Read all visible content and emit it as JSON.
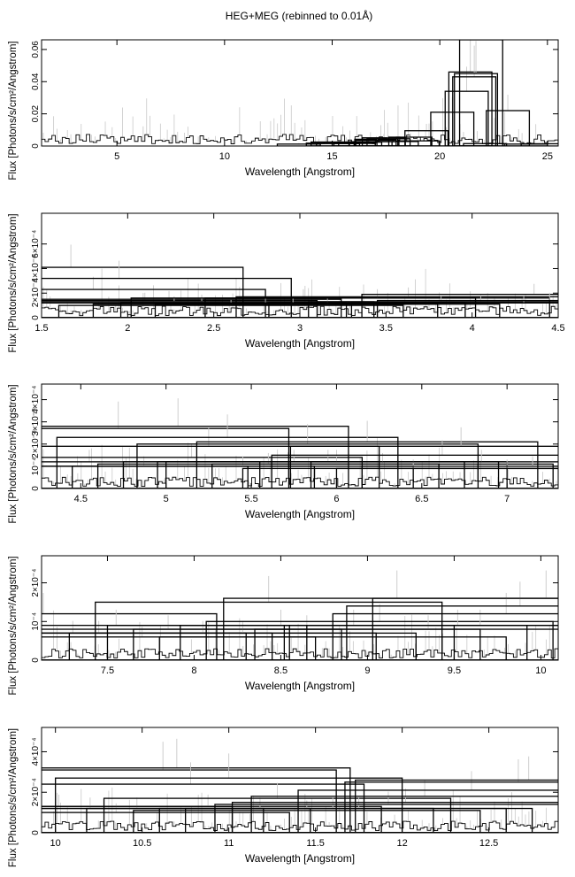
{
  "title": "HEG+MEG (rebinned to 0.01Å)",
  "colors": {
    "data": "#000000",
    "error": "#c8c8c8",
    "axis": "#000000"
  },
  "chart_data": [
    {
      "type": "histogram",
      "xlabel": "Wavelength [Angstrom]",
      "ylabel": "Flux [Photons/s/cm²/Angstrom]",
      "xlim": [
        1.5,
        25.5
      ],
      "ylim": [
        0,
        0.066
      ],
      "xticks": [
        5,
        10,
        15,
        20,
        25
      ],
      "yticks": [
        0,
        0.02,
        0.04,
        0.06
      ],
      "ytick_labels": [
        "0",
        "0.02",
        "0.04",
        "0.06"
      ],
      "bins": [
        [
          13.45,
          0.0012
        ],
        [
          14.8,
          0.0018
        ],
        [
          15.02,
          0.0025
        ],
        [
          15.27,
          0.0015
        ],
        [
          16.0,
          0.0016
        ],
        [
          16.08,
          0.0022
        ],
        [
          16.3,
          0.0024
        ],
        [
          16.78,
          0.0027
        ],
        [
          17.05,
          0.0042
        ],
        [
          17.1,
          0.0036
        ],
        [
          17.4,
          0.0051
        ],
        [
          17.62,
          0.0045
        ],
        [
          18.0,
          0.0028
        ],
        [
          18.63,
          0.0055
        ],
        [
          18.97,
          0.0032
        ],
        [
          19.38,
          0.0095
        ],
        [
          20.58,
          0.021
        ],
        [
          21.25,
          0.034
        ],
        [
          21.42,
          0.046
        ],
        [
          21.6,
          0.043
        ],
        [
          21.68,
          0.045
        ],
        [
          21.92,
          0.066
        ],
        [
          22.1,
          0.0015
        ],
        [
          23.16,
          0.022
        ],
        [
          24.0,
          0.0012
        ],
        [
          24.78,
          0.0014
        ]
      ]
    },
    {
      "type": "histogram",
      "xlabel": "Wavelength [Angstrom]",
      "ylabel": "Flux [Photons/s/cm²/Angstrom]",
      "xlim": [
        1.5,
        4.5
      ],
      "ylim": [
        0,
        0.00085
      ],
      "xticks": [
        1.5,
        2,
        2.5,
        3,
        3.5,
        4,
        4.5
      ],
      "yticks": [
        0,
        0.0002,
        0.0004,
        0.0006
      ],
      "ytick_labels": [
        "0",
        "2×10⁻⁴",
        "4×10⁻⁴",
        "6×10⁻⁴"
      ],
      "bins": [
        [
          1.67,
          0.00041
        ],
        [
          1.8,
          0.00023
        ],
        [
          1.95,
          0.00032
        ],
        [
          2.1,
          0.00014
        ],
        [
          2.24,
          0.00015
        ],
        [
          2.27,
          0.00012
        ],
        [
          2.43,
          0.00013
        ],
        [
          2.6,
          0.0001
        ],
        [
          2.8,
          0.00011
        ],
        [
          2.96,
          0.00012
        ],
        [
          3.02,
          0.00016
        ],
        [
          3.16,
          0.00011
        ],
        [
          3.45,
          0.00016
        ],
        [
          3.63,
          0.00017
        ],
        [
          3.82,
          0.00012
        ],
        [
          4.05,
          0.00013
        ],
        [
          4.3,
          0.00012
        ],
        [
          4.36,
          0.00019
        ],
        [
          4.45,
          0.00014
        ]
      ]
    },
    {
      "type": "histogram",
      "xlabel": "Wavelength [Angstrom]",
      "ylabel": "Flux [Photons/s/cm²/Angstrom]",
      "xlim": [
        4.27,
        7.3
      ],
      "ylim": [
        0,
        0.00047
      ],
      "xticks": [
        4.5,
        5,
        5.5,
        6,
        6.5,
        7
      ],
      "yticks": [
        0,
        0.0001,
        0.0002,
        0.0003,
        0.0004
      ],
      "ytick_labels": [
        "0",
        "10⁻⁴",
        "2×10⁻⁴",
        "3×10⁻⁴",
        "4×10⁻⁴"
      ],
      "bins": [
        [
          4.48,
          0.0001
        ],
        [
          4.55,
          0.00012
        ],
        [
          4.72,
          0.00027
        ],
        [
          4.87,
          0.0001
        ],
        [
          5.07,
          0.00028
        ],
        [
          5.15,
          0.00014
        ],
        [
          5.25,
          0.00019
        ],
        [
          5.36,
          0.00023
        ],
        [
          5.45,
          0.0001
        ],
        [
          5.6,
          0.00011
        ],
        [
          5.75,
          0.00012
        ],
        [
          5.83,
          0.0002
        ],
        [
          5.95,
          0.00012
        ],
        [
          6.0,
          0.00012
        ],
        [
          6.18,
          0.00021
        ],
        [
          6.27,
          0.00011
        ],
        [
          6.45,
          9e-05
        ],
        [
          6.62,
          0.00015
        ],
        [
          6.73,
          0.00019
        ],
        [
          6.85,
          0.00012
        ],
        [
          7.0,
          9e-05
        ],
        [
          7.15,
          0.0001
        ]
      ]
    },
    {
      "type": "histogram",
      "xlabel": "Wavelength [Angstrom]",
      "ylabel": "Flux [Photons/s/cm²/Angstrom]",
      "xlim": [
        7.12,
        10.1
      ],
      "ylim": [
        0,
        0.00027
      ],
      "xticks": [
        7.5,
        8,
        8.5,
        9,
        9.5,
        10
      ],
      "yticks": [
        0,
        0.0001,
        0.0002
      ],
      "ytick_labels": [
        "0",
        "10⁻⁴",
        "2×10⁻⁴"
      ],
      "bins": [
        [
          7.13,
          0.00012
        ],
        [
          7.3,
          7e-05
        ],
        [
          7.45,
          7e-05
        ],
        [
          7.55,
          9e-05
        ],
        [
          7.7,
          6e-05
        ],
        [
          7.85,
          8e-05
        ],
        [
          8.05,
          7e-05
        ],
        [
          8.28,
          7e-05
        ],
        [
          8.43,
          0.00015
        ],
        [
          8.5,
          9e-05
        ],
        [
          8.65,
          8e-05
        ],
        [
          8.8,
          6e-05
        ],
        [
          8.92,
          9e-05
        ],
        [
          9.07,
          0.0001
        ],
        [
          9.17,
          0.00016
        ],
        [
          9.35,
          8e-05
        ],
        [
          9.52,
          9e-05
        ],
        [
          9.65,
          9e-05
        ],
        [
          9.8,
          0.00012
        ],
        [
          9.88,
          0.00014
        ],
        [
          10.03,
          0.00016
        ]
      ]
    },
    {
      "type": "histogram",
      "xlabel": "Wavelength [Angstrom]",
      "ylabel": "Flux [Photons/s/cm²/Angstrom]",
      "xlim": [
        9.92,
        12.9
      ],
      "ylim": [
        0,
        0.00052
      ],
      "xticks": [
        10,
        10.5,
        11,
        11.5,
        12,
        12.5
      ],
      "yticks": [
        0,
        0.0002,
        0.0004
      ],
      "ytick_labels": [
        "0",
        "2×10⁻⁴",
        "4×10⁻⁴"
      ],
      "bins": [
        [
          10.02,
          0.00013
        ],
        [
          10.2,
          0.00012
        ],
        [
          10.35,
          0.0001
        ],
        [
          10.47,
          0.00012
        ],
        [
          10.62,
          0.00031
        ],
        [
          10.7,
          0.00032
        ],
        [
          10.78,
          0.00024
        ],
        [
          10.88,
          0.00013
        ],
        [
          11.0,
          0.00027
        ],
        [
          11.18,
          0.00012
        ],
        [
          11.28,
          0.00017
        ],
        [
          11.45,
          0.00011
        ],
        [
          11.6,
          0.00012
        ],
        [
          11.75,
          0.00012
        ],
        [
          11.92,
          0.00014
        ],
        [
          12.02,
          0.00015
        ],
        [
          12.13,
          0.00018
        ],
        [
          12.4,
          0.00021
        ],
        [
          12.67,
          0.00025
        ],
        [
          12.73,
          0.00026
        ]
      ]
    }
  ]
}
